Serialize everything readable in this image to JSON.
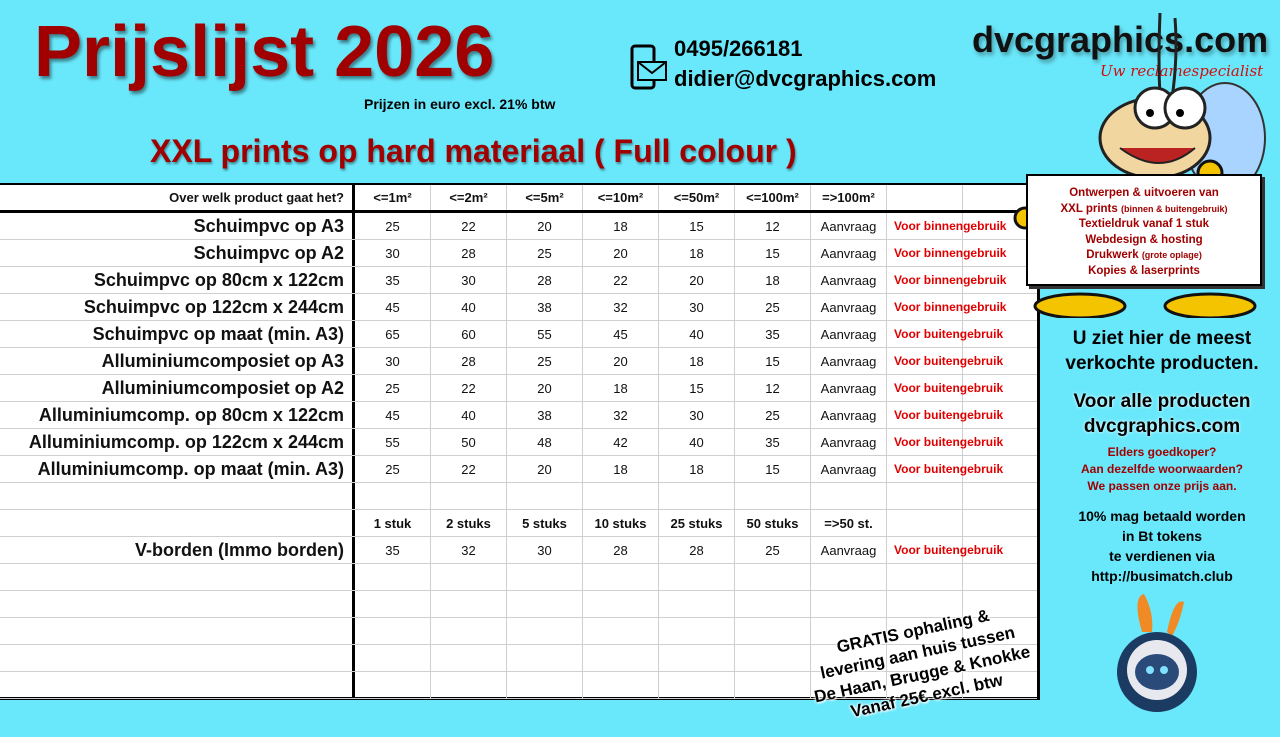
{
  "header": {
    "title": "Prijslijst 2026",
    "subtitle": "Prijzen in euro excl. 21% btw",
    "heading": "XXL prints op hard materiaal ( Full colour )"
  },
  "contact": {
    "phone": "0495/266181",
    "email": "didier@dvcgraphics.com",
    "icon": "phone-mail-icon"
  },
  "logo": {
    "text": "dvcgraphics.com",
    "tagline": "Uw reclamespecialist"
  },
  "table": {
    "columns": [
      "Over welk product gaat het?",
      "<=1m²",
      "<=2m²",
      "<=5m²",
      "<=10m²",
      "<=50m²",
      "<=100m²",
      "=>100m²",
      "",
      ""
    ],
    "rows": [
      [
        "Schuimpvc op A3",
        "25",
        "22",
        "20",
        "18",
        "15",
        "12",
        "Aanvraag",
        "Voor binnengebruik",
        ""
      ],
      [
        "Schuimpvc op A2",
        "30",
        "28",
        "25",
        "20",
        "18",
        "15",
        "Aanvraag",
        "Voor binnengebruik",
        ""
      ],
      [
        "Schuimpvc op 80cm x 122cm",
        "35",
        "30",
        "28",
        "22",
        "20",
        "18",
        "Aanvraag",
        "Voor binnengebruik",
        ""
      ],
      [
        "Schuimpvc op 122cm x 244cm",
        "45",
        "40",
        "38",
        "32",
        "30",
        "25",
        "Aanvraag",
        "Voor binnengebruik",
        ""
      ],
      [
        "Schuimpvc op maat (min. A3)",
        "65",
        "60",
        "55",
        "45",
        "40",
        "35",
        "Aanvraag",
        "Voor buitengebruik",
        ""
      ],
      [
        "Alluminiumcomposiet op A3",
        "30",
        "28",
        "25",
        "20",
        "18",
        "15",
        "Aanvraag",
        "Voor buitengebruik",
        ""
      ],
      [
        "Alluminiumcomposiet op A2",
        "25",
        "22",
        "20",
        "18",
        "15",
        "12",
        "Aanvraag",
        "Voor buitengebruik",
        ""
      ],
      [
        "Alluminiumcomp. op 80cm x 122cm",
        "45",
        "40",
        "38",
        "32",
        "30",
        "25",
        "Aanvraag",
        "Voor buitengebruik",
        ""
      ],
      [
        "Alluminiumcomp. op 122cm x 244cm",
        "55",
        "50",
        "48",
        "42",
        "40",
        "35",
        "Aanvraag",
        "Voor buitengebruik",
        ""
      ],
      [
        "Alluminiumcomp. op maat (min. A3)",
        "25",
        "22",
        "20",
        "18",
        "18",
        "15",
        "Aanvraag",
        "Voor buitengebruik",
        ""
      ],
      [
        "",
        "",
        "",
        "",
        "",
        "",
        "",
        "",
        "",
        ""
      ],
      [
        "",
        "1 stuk",
        "2 stuks",
        "5 stuks",
        "10 stuks",
        "25 stuks",
        "50 stuks",
        "=>50 st.",
        "",
        ""
      ],
      [
        "V-borden (Immo borden)",
        "35",
        "32",
        "30",
        "28",
        "28",
        "25",
        "Aanvraag",
        "Voor buitengebruik",
        ""
      ],
      [
        "",
        "",
        "",
        "",
        "",
        "",
        "",
        "",
        "",
        ""
      ],
      [
        "",
        "",
        "",
        "",
        "",
        "",
        "",
        "",
        "",
        ""
      ],
      [
        "",
        "",
        "",
        "",
        "",
        "",
        "",
        "",
        "",
        ""
      ],
      [
        "",
        "",
        "",
        "",
        "",
        "",
        "",
        "",
        "",
        ""
      ],
      [
        "",
        "",
        "",
        "",
        "",
        "",
        "",
        "",
        "",
        ""
      ]
    ]
  },
  "promo": {
    "lines": [
      "Ontwerpen & uitvoeren van",
      "XXL prints",
      "(binnen & buitengebruik)",
      "Textieldruk vanaf 1 stuk",
      "Webdesign & hosting",
      "Drukwerk",
      "(grote oplage)",
      "Kopies & laserprints"
    ]
  },
  "side": {
    "s1": [
      "U ziet hier de meest",
      "verkochte producten."
    ],
    "s2": [
      "Voor alle producten",
      "dvcgraphics.com"
    ],
    "s3": [
      "Elders goedkoper?",
      "Aan dezelfde woorwaarden?",
      "We passen onze prijs aan."
    ],
    "s4": [
      "10% mag betaald worden",
      "in Bt tokens",
      "te verdienen via",
      "http://busimatch.club"
    ]
  },
  "gratis": [
    "GRATIS ophaling &",
    "levering aan huis tussen",
    "De Haan, Brugge & Knokke",
    "Vanaf 25€ excl. btw"
  ],
  "colors": {
    "background": "#6ae8fb",
    "title": "#a00000",
    "note": "#e00000"
  }
}
